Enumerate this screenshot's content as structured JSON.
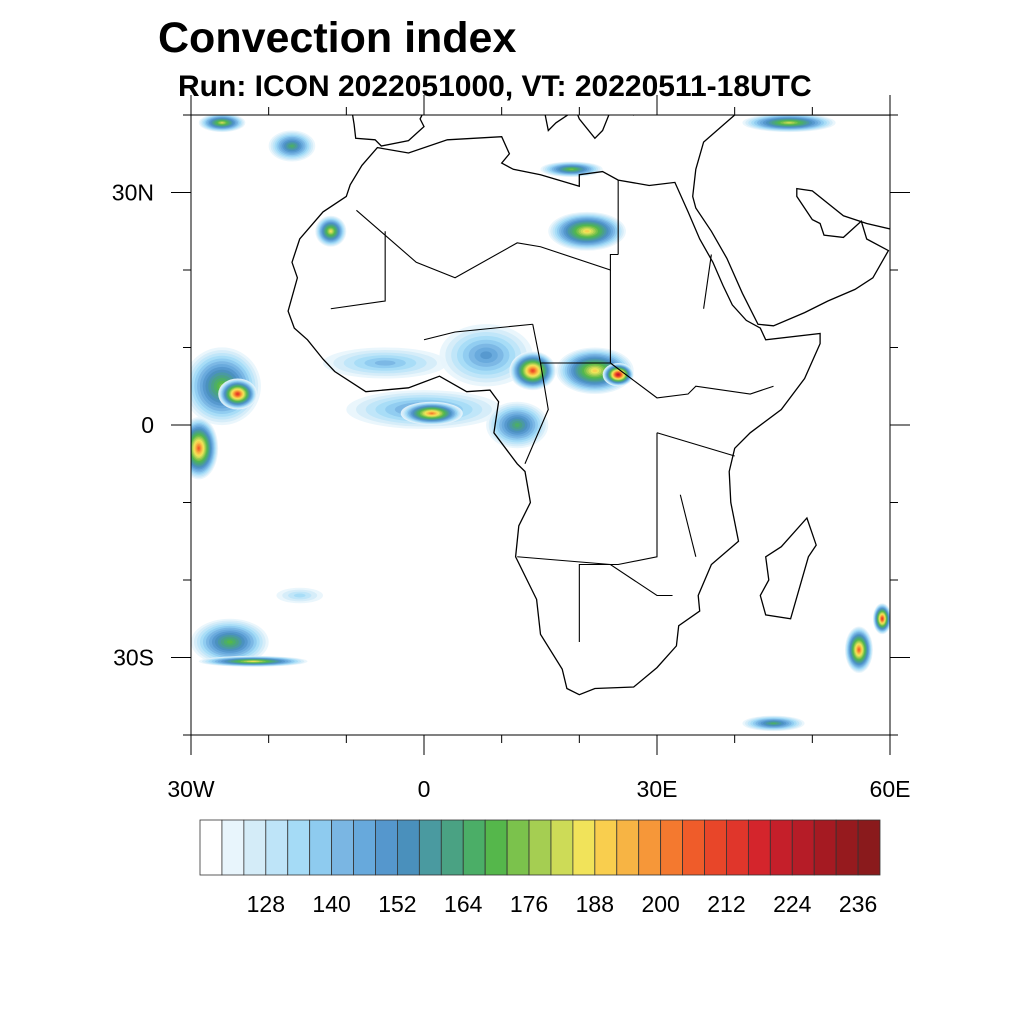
{
  "title": "Convection index",
  "subtitle": "Run: ICON 2022051000,  VT: 20220511-18UTC",
  "chart_data": {
    "type": "heatmap",
    "title": "Convection index",
    "subtitle": "Run: ICON 2022051000,  VT: 20220511-18UTC",
    "lon_range": [
      -30,
      60
    ],
    "lat_range": [
      -40,
      40
    ],
    "x_ticks": [
      {
        "value": -30,
        "label": "30W"
      },
      {
        "value": 0,
        "label": "0"
      },
      {
        "value": 30,
        "label": "30E"
      },
      {
        "value": 60,
        "label": "60E"
      }
    ],
    "y_ticks": [
      {
        "value": 30,
        "label": "30N"
      },
      {
        "value": 0,
        "label": "0"
      },
      {
        "value": -30,
        "label": "30S"
      }
    ],
    "levels": [
      120,
      124,
      128,
      132,
      136,
      140,
      144,
      148,
      152,
      156,
      160,
      164,
      168,
      172,
      176,
      180,
      184,
      188,
      192,
      196,
      200,
      204,
      208,
      212,
      216,
      220,
      224,
      228,
      232,
      236
    ],
    "colorbar_labels": [
      "128",
      "140",
      "152",
      "164",
      "176",
      "188",
      "200",
      "212",
      "224",
      "236"
    ],
    "colors": [
      "#ffffff",
      "#e8f5fc",
      "#d4ecf8",
      "#bee4f8",
      "#a5dbf6",
      "#8ecbef",
      "#7ab6e3",
      "#67a9dc",
      "#5597cd",
      "#4a90bc",
      "#4a9aa0",
      "#4aa283",
      "#4bae67",
      "#55b74b",
      "#7bc24c",
      "#a5ce52",
      "#cddb57",
      "#f1e35a",
      "#f9ce4e",
      "#f7b444",
      "#f69739",
      "#f4792f",
      "#ef5c2a",
      "#e84629",
      "#e0362b",
      "#d4252c",
      "#c51f2a",
      "#b61c27",
      "#a51a22",
      "#961a1e",
      "#8a1a1c"
    ],
    "cells": [
      {
        "lon": -26,
        "lat": 5,
        "rx": 5,
        "ry": 5,
        "value": 175
      },
      {
        "lon": -24,
        "lat": 4,
        "rx": 2.5,
        "ry": 2,
        "value": 215
      },
      {
        "lon": -29,
        "lat": -3,
        "rx": 2.5,
        "ry": 4,
        "value": 205
      },
      {
        "lon": 0,
        "lat": 2,
        "rx": 10,
        "ry": 2.5,
        "value": 150
      },
      {
        "lon": 1,
        "lat": 1.5,
        "rx": 4,
        "ry": 1.5,
        "value": 200
      },
      {
        "lon": -5,
        "lat": 8,
        "rx": 8,
        "ry": 2,
        "value": 140
      },
      {
        "lon": 8,
        "lat": 9,
        "rx": 6,
        "ry": 4,
        "value": 150
      },
      {
        "lon": 14,
        "lat": 7,
        "rx": 3,
        "ry": 2.5,
        "value": 210
      },
      {
        "lon": 22,
        "lat": 7,
        "rx": 5,
        "ry": 3,
        "value": 190
      },
      {
        "lon": 25,
        "lat": 6.5,
        "rx": 2,
        "ry": 1.5,
        "value": 225
      },
      {
        "lon": 12,
        "lat": 0,
        "rx": 4,
        "ry": 3,
        "value": 165
      },
      {
        "lon": 21,
        "lat": 25,
        "rx": 5,
        "ry": 2.5,
        "value": 190
      },
      {
        "lon": 19,
        "lat": 33,
        "rx": 4,
        "ry": 1,
        "value": 175
      },
      {
        "lon": 47,
        "lat": 39,
        "rx": 6,
        "ry": 1.2,
        "value": 180
      },
      {
        "lon": -26,
        "lat": 39,
        "rx": 3,
        "ry": 1.2,
        "value": 180
      },
      {
        "lon": -17,
        "lat": 36,
        "rx": 3,
        "ry": 2,
        "value": 165
      },
      {
        "lon": -12,
        "lat": 25,
        "rx": 2,
        "ry": 2,
        "value": 185
      },
      {
        "lon": -25,
        "lat": -28,
        "rx": 5,
        "ry": 3,
        "value": 170
      },
      {
        "lon": -22,
        "lat": -30.5,
        "rx": 7,
        "ry": 0.7,
        "value": 185
      },
      {
        "lon": 56,
        "lat": -29,
        "rx": 1.8,
        "ry": 3,
        "value": 205
      },
      {
        "lon": 59,
        "lat": -25,
        "rx": 1.2,
        "ry": 2,
        "value": 215
      },
      {
        "lon": 45,
        "lat": -38.5,
        "rx": 4,
        "ry": 1,
        "value": 165
      },
      {
        "lon": -16,
        "lat": -22,
        "rx": 3,
        "ry": 1,
        "value": 135
      }
    ]
  }
}
